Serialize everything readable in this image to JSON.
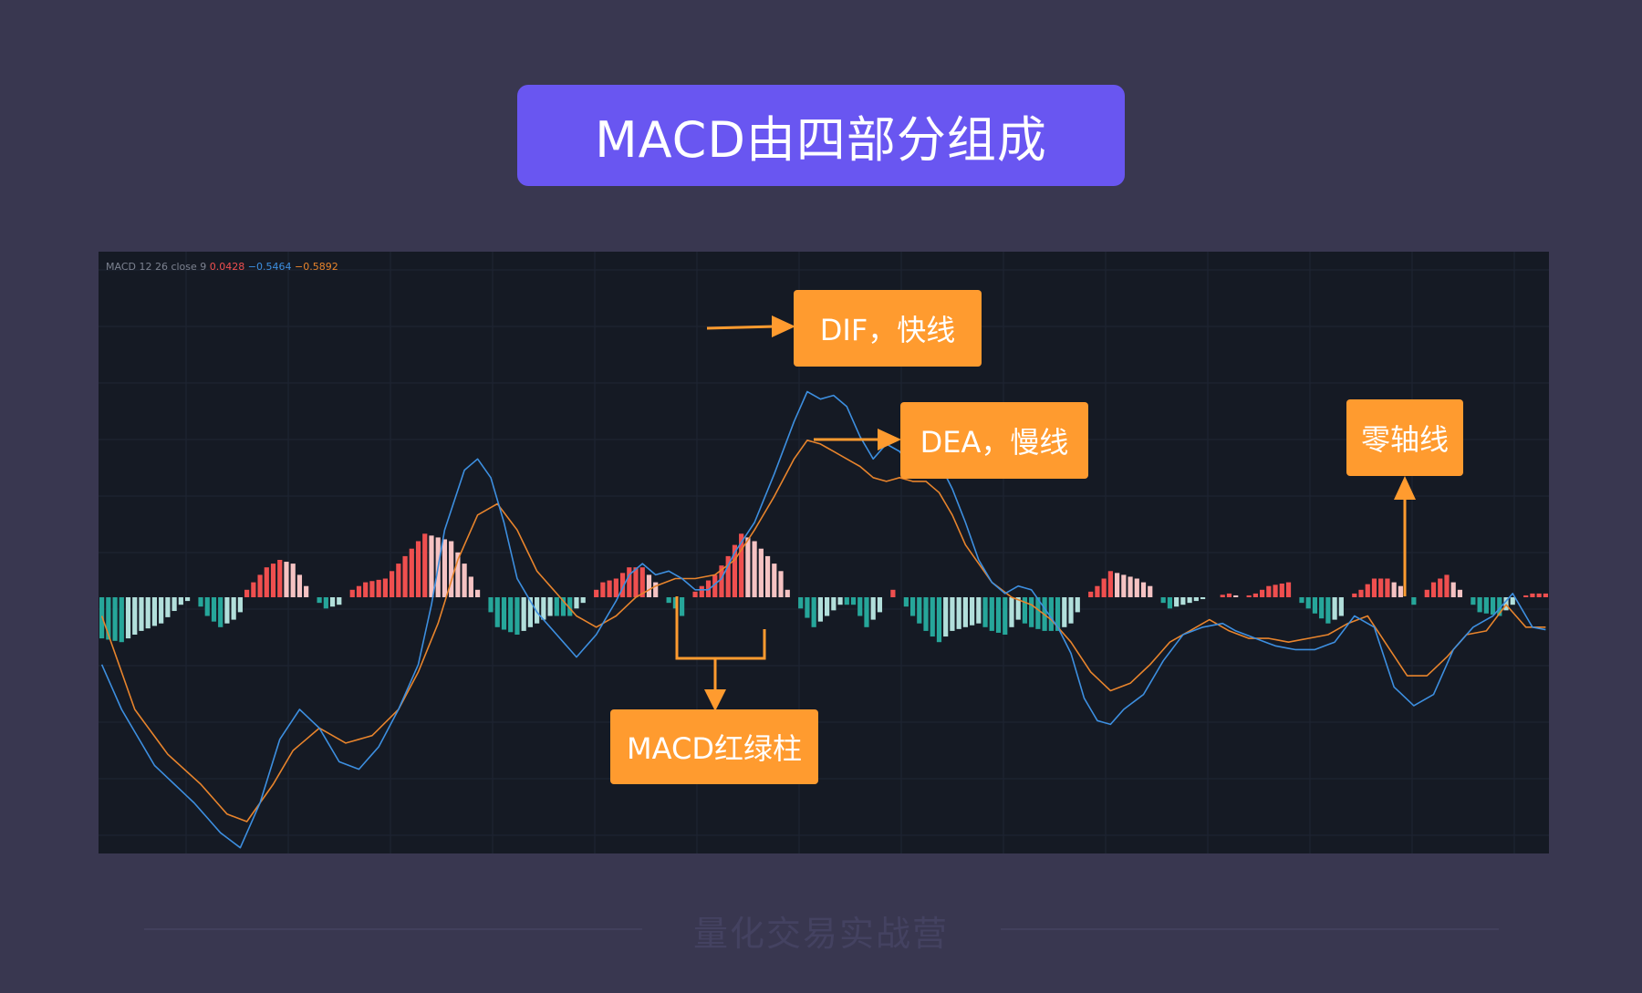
{
  "title": "MACD由四部分组成",
  "legend": {
    "label": "MACD 12 26 close 9",
    "value_hist": "0.0428",
    "value_dif": "−0.5464",
    "value_dea": "−0.5892"
  },
  "callouts": {
    "dif": "DIF，快线",
    "dea": "DEA，慢线",
    "zero": "零轴线",
    "hist": "MACD红绿柱"
  },
  "footer": "量化交易实战营",
  "colors": {
    "accent": "#6956f1",
    "callout": "#ff9b2f",
    "dif": "#3d8fe0",
    "dea": "#e8842c",
    "hist_pos_strong": "#ef4f4f",
    "hist_pos_weak": "#f5c3c3",
    "hist_neg_strong": "#26a69a",
    "hist_neg_weak": "#b2dfdb"
  },
  "chart_data": {
    "type": "line",
    "x_count": 220,
    "ylim": [
      -0.9,
      0.9
    ],
    "grid": true,
    "series": [
      {
        "key": "dif",
        "anchors": [
          [
            0,
            -0.18
          ],
          [
            3,
            -0.3
          ],
          [
            8,
            -0.45
          ],
          [
            14,
            -0.55
          ],
          [
            18,
            -0.63
          ],
          [
            21,
            -0.67
          ],
          [
            24,
            -0.55
          ],
          [
            27,
            -0.38
          ],
          [
            30,
            -0.3
          ],
          [
            33,
            -0.35
          ],
          [
            36,
            -0.44
          ],
          [
            39,
            -0.46
          ],
          [
            42,
            -0.4
          ],
          [
            45,
            -0.3
          ],
          [
            48,
            -0.18
          ],
          [
            50,
            -0.02
          ],
          [
            52,
            0.18
          ],
          [
            55,
            0.34
          ],
          [
            57,
            0.37
          ],
          [
            59,
            0.32
          ],
          [
            61,
            0.2
          ],
          [
            63,
            0.05
          ],
          [
            66,
            -0.04
          ],
          [
            69,
            -0.1
          ],
          [
            72,
            -0.16
          ],
          [
            75,
            -0.1
          ],
          [
            78,
            -0.01
          ],
          [
            80,
            0.06
          ],
          [
            82,
            0.09
          ],
          [
            84,
            0.06
          ],
          [
            86,
            0.07
          ],
          [
            88,
            0.05
          ],
          [
            90,
            0.02
          ],
          [
            92,
            0.02
          ],
          [
            94,
            0.05
          ],
          [
            96,
            0.12
          ],
          [
            99,
            0.2
          ],
          [
            102,
            0.33
          ],
          [
            105,
            0.47
          ],
          [
            107,
            0.55
          ],
          [
            109,
            0.53
          ],
          [
            111,
            0.54
          ],
          [
            113,
            0.51
          ],
          [
            115,
            0.43
          ],
          [
            117,
            0.37
          ],
          [
            119,
            0.41
          ],
          [
            121,
            0.39
          ],
          [
            123,
            0.34
          ],
          [
            125,
            0.37
          ],
          [
            127,
            0.36
          ],
          [
            129,
            0.29
          ],
          [
            131,
            0.2
          ],
          [
            133,
            0.1
          ],
          [
            135,
            0.04
          ],
          [
            137,
            0.01
          ],
          [
            139,
            0.03
          ],
          [
            141,
            0.02
          ],
          [
            143,
            -0.03
          ],
          [
            145,
            -0.08
          ],
          [
            147,
            -0.15
          ],
          [
            149,
            -0.27
          ],
          [
            151,
            -0.33
          ],
          [
            153,
            -0.34
          ],
          [
            155,
            -0.3
          ],
          [
            158,
            -0.26
          ],
          [
            161,
            -0.17
          ],
          [
            164,
            -0.1
          ],
          [
            167,
            -0.08
          ],
          [
            170,
            -0.07
          ],
          [
            172,
            -0.09
          ],
          [
            175,
            -0.11
          ],
          [
            178,
            -0.13
          ],
          [
            181,
            -0.14
          ],
          [
            184,
            -0.14
          ],
          [
            187,
            -0.12
          ],
          [
            190,
            -0.05
          ],
          [
            193,
            -0.08
          ],
          [
            196,
            -0.24
          ],
          [
            199,
            -0.29
          ],
          [
            202,
            -0.26
          ],
          [
            205,
            -0.14
          ],
          [
            208,
            -0.08
          ],
          [
            211,
            -0.05
          ],
          [
            214,
            0.01
          ],
          [
            217,
            -0.08
          ],
          [
            220,
            -0.09
          ]
        ]
      },
      {
        "key": "dea",
        "anchors": [
          [
            0,
            -0.05
          ],
          [
            5,
            -0.3
          ],
          [
            10,
            -0.42
          ],
          [
            15,
            -0.5
          ],
          [
            19,
            -0.58
          ],
          [
            22,
            -0.6
          ],
          [
            26,
            -0.5
          ],
          [
            29,
            -0.41
          ],
          [
            33,
            -0.35
          ],
          [
            37,
            -0.39
          ],
          [
            41,
            -0.37
          ],
          [
            45,
            -0.3
          ],
          [
            48,
            -0.2
          ],
          [
            51,
            -0.07
          ],
          [
            54,
            0.1
          ],
          [
            57,
            0.22
          ],
          [
            60,
            0.25
          ],
          [
            63,
            0.18
          ],
          [
            66,
            0.07
          ],
          [
            69,
            0.01
          ],
          [
            72,
            -0.05
          ],
          [
            75,
            -0.08
          ],
          [
            78,
            -0.05
          ],
          [
            81,
            0.0
          ],
          [
            84,
            0.03
          ],
          [
            87,
            0.05
          ],
          [
            90,
            0.05
          ],
          [
            93,
            0.06
          ],
          [
            96,
            0.1
          ],
          [
            99,
            0.18
          ],
          [
            102,
            0.27
          ],
          [
            105,
            0.37
          ],
          [
            107,
            0.42
          ],
          [
            109,
            0.41
          ],
          [
            111,
            0.39
          ],
          [
            113,
            0.37
          ],
          [
            115,
            0.35
          ],
          [
            117,
            0.32
          ],
          [
            119,
            0.31
          ],
          [
            121,
            0.32
          ],
          [
            123,
            0.31
          ],
          [
            125,
            0.31
          ],
          [
            127,
            0.28
          ],
          [
            129,
            0.22
          ],
          [
            131,
            0.14
          ],
          [
            133,
            0.09
          ],
          [
            135,
            0.04
          ],
          [
            138,
            0.0
          ],
          [
            141,
            -0.02
          ],
          [
            144,
            -0.06
          ],
          [
            147,
            -0.12
          ],
          [
            150,
            -0.2
          ],
          [
            153,
            -0.25
          ],
          [
            156,
            -0.23
          ],
          [
            159,
            -0.18
          ],
          [
            162,
            -0.12
          ],
          [
            165,
            -0.09
          ],
          [
            168,
            -0.06
          ],
          [
            171,
            -0.09
          ],
          [
            174,
            -0.11
          ],
          [
            177,
            -0.11
          ],
          [
            180,
            -0.12
          ],
          [
            183,
            -0.11
          ],
          [
            186,
            -0.1
          ],
          [
            189,
            -0.07
          ],
          [
            192,
            -0.05
          ],
          [
            195,
            -0.13
          ],
          [
            198,
            -0.21
          ],
          [
            201,
            -0.21
          ],
          [
            204,
            -0.16
          ],
          [
            207,
            -0.1
          ],
          [
            210,
            -0.09
          ],
          [
            213,
            -0.02
          ],
          [
            216,
            -0.08
          ],
          [
            220,
            -0.08
          ]
        ]
      },
      {
        "key": "hist",
        "anchors": [
          [
            0,
            -0.11
          ],
          [
            3,
            -0.12
          ],
          [
            6,
            -0.09
          ],
          [
            9,
            -0.07
          ],
          [
            12,
            -0.02
          ],
          [
            14,
            0.0
          ],
          [
            16,
            -0.05
          ],
          [
            18,
            -0.08
          ],
          [
            20,
            -0.06
          ],
          [
            21,
            -0.04
          ],
          [
            22,
            0.02
          ],
          [
            25,
            0.08
          ],
          [
            27,
            0.1
          ],
          [
            29,
            0.09
          ],
          [
            31,
            0.03
          ],
          [
            32,
            0.0
          ],
          [
            34,
            -0.03
          ],
          [
            36,
            -0.02
          ],
          [
            37,
            0.0
          ],
          [
            38,
            0.02
          ],
          [
            40,
            0.04
          ],
          [
            43,
            0.05
          ],
          [
            45,
            0.09
          ],
          [
            47,
            0.13
          ],
          [
            49,
            0.17
          ],
          [
            51,
            0.16
          ],
          [
            53,
            0.15
          ],
          [
            55,
            0.09
          ],
          [
            57,
            0.02
          ],
          [
            58,
            0.0
          ],
          [
            60,
            -0.08
          ],
          [
            63,
            -0.1
          ],
          [
            65,
            -0.08
          ],
          [
            68,
            -0.05
          ],
          [
            71,
            -0.05
          ],
          [
            72,
            -0.03
          ],
          [
            74,
            0.0
          ],
          [
            76,
            0.04
          ],
          [
            78,
            0.05
          ],
          [
            80,
            0.08
          ],
          [
            82,
            0.08
          ],
          [
            84,
            0.04
          ],
          [
            85,
            0.0
          ],
          [
            87,
            -0.03
          ],
          [
            88,
            -0.05
          ],
          [
            89,
            0.0
          ],
          [
            91,
            0.03
          ],
          [
            93,
            0.06
          ],
          [
            95,
            0.11
          ],
          [
            97,
            0.17
          ],
          [
            99,
            0.15
          ],
          [
            101,
            0.11
          ],
          [
            103,
            0.07
          ],
          [
            104,
            0.02
          ],
          [
            105,
            0.0
          ],
          [
            106,
            -0.03
          ],
          [
            108,
            -0.08
          ],
          [
            110,
            -0.05
          ],
          [
            112,
            -0.02
          ],
          [
            114,
            -0.02
          ],
          [
            116,
            -0.08
          ],
          [
            118,
            -0.04
          ],
          [
            119,
            0.0
          ],
          [
            120,
            0.02
          ],
          [
            121,
            0.0
          ],
          [
            123,
            -0.05
          ],
          [
            125,
            -0.09
          ],
          [
            127,
            -0.12
          ],
          [
            129,
            -0.09
          ],
          [
            131,
            -0.08
          ],
          [
            133,
            -0.07
          ],
          [
            135,
            -0.09
          ],
          [
            137,
            -0.1
          ],
          [
            139,
            -0.06
          ],
          [
            141,
            -0.08
          ],
          [
            143,
            -0.09
          ],
          [
            145,
            -0.09
          ],
          [
            147,
            -0.07
          ],
          [
            148,
            -0.04
          ],
          [
            149,
            0.0
          ],
          [
            151,
            0.03
          ],
          [
            153,
            0.07
          ],
          [
            155,
            0.06
          ],
          [
            157,
            0.05
          ],
          [
            159,
            0.03
          ],
          [
            160,
            0.0
          ],
          [
            162,
            -0.03
          ],
          [
            164,
            -0.02
          ],
          [
            166,
            -0.01
          ],
          [
            168,
            0.0
          ],
          [
            171,
            0.01
          ],
          [
            173,
            0.0
          ],
          [
            175,
            0.01
          ],
          [
            177,
            0.03
          ],
          [
            180,
            0.04
          ],
          [
            181,
            0.0
          ],
          [
            183,
            -0.03
          ],
          [
            186,
            -0.07
          ],
          [
            188,
            -0.05
          ],
          [
            189,
            0.0
          ],
          [
            191,
            0.02
          ],
          [
            193,
            0.05
          ],
          [
            195,
            0.05
          ],
          [
            197,
            0.03
          ],
          [
            198,
            0.0
          ],
          [
            199,
            -0.02
          ],
          [
            200,
            0.0
          ],
          [
            202,
            0.04
          ],
          [
            204,
            0.06
          ],
          [
            206,
            0.02
          ],
          [
            207,
            0.0
          ],
          [
            209,
            -0.04
          ],
          [
            212,
            -0.05
          ],
          [
            214,
            -0.02
          ],
          [
            215,
            0.0
          ],
          [
            217,
            0.01
          ],
          [
            220,
            0.01
          ]
        ]
      }
    ]
  }
}
